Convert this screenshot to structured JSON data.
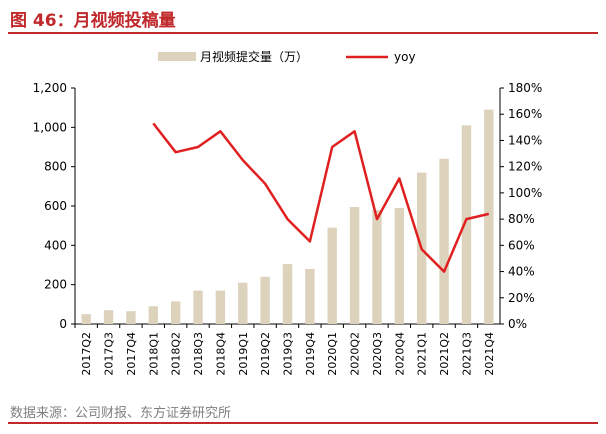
{
  "title": "图 46：月视频投稿量",
  "source": "数据来源：公司财报、东方证券研究所",
  "colors": {
    "accent": "#c0282b",
    "bar": "#ddd3bd",
    "line": "#e02020"
  },
  "chart_data": {
    "type": "bar",
    "categories": [
      "2017Q2",
      "2017Q3",
      "2017Q4",
      "2018Q1",
      "2018Q2",
      "2018Q3",
      "2018Q4",
      "2019Q1",
      "2019Q2",
      "2019Q3",
      "2019Q4",
      "2020Q1",
      "2020Q2",
      "2020Q3",
      "2020Q4",
      "2021Q1",
      "2021Q2",
      "2021Q3",
      "2021Q4"
    ],
    "series": [
      {
        "name": "月视频提交量（万）",
        "type": "bar",
        "axis": "left",
        "values": [
          50,
          70,
          65,
          90,
          115,
          170,
          170,
          210,
          240,
          305,
          280,
          490,
          595,
          580,
          590,
          770,
          840,
          1010,
          1090
        ]
      },
      {
        "name": "yoy",
        "type": "line",
        "axis": "right",
        "values": [
          null,
          null,
          null,
          153,
          131,
          135,
          147,
          125,
          107,
          80,
          63,
          135,
          147,
          80,
          111,
          57,
          40,
          80,
          84
        ]
      }
    ],
    "left_axis": {
      "ylim": [
        0,
        1200
      ],
      "ticks": [
        "0",
        "200",
        "400",
        "600",
        "800",
        "1,000",
        "1,200"
      ]
    },
    "right_axis": {
      "ylim": [
        0,
        180
      ],
      "ticks": [
        "0%",
        "20%",
        "40%",
        "60%",
        "80%",
        "100%",
        "120%",
        "140%",
        "160%",
        "180%"
      ]
    },
    "legend": {
      "position": "top"
    },
    "grid": false
  }
}
